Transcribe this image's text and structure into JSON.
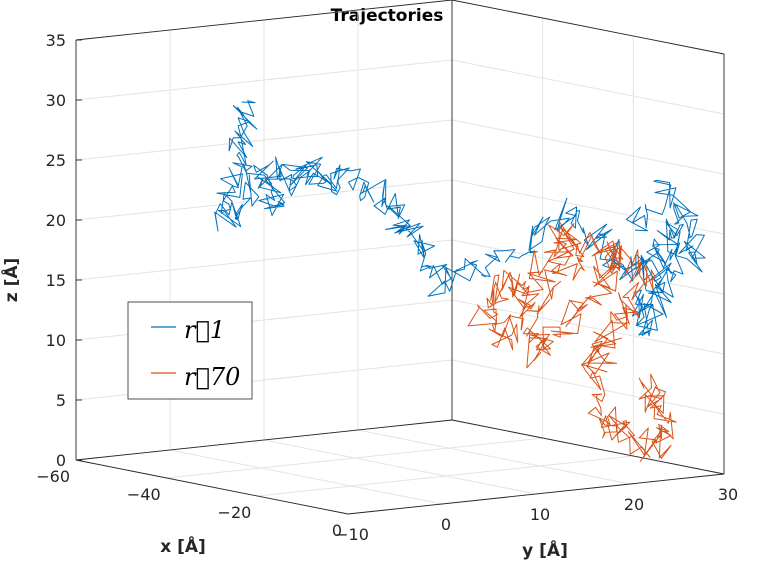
{
  "chart_data": {
    "type": "line",
    "projection": "3d",
    "title": "Trajectories",
    "xlabel": "x [Å]",
    "ylabel": "y [Å]",
    "zlabel": "z [Å]",
    "xlim": [
      -60,
      0
    ],
    "ylim": [
      -10,
      30
    ],
    "zlim": [
      0,
      35
    ],
    "xticks": [
      -60,
      -40,
      -20,
      0
    ],
    "yticks": [
      -10,
      0,
      10,
      20,
      30
    ],
    "zticks": [
      0,
      5,
      10,
      15,
      20,
      25,
      30,
      35
    ],
    "xtick_labels": [
      "−60",
      "−40",
      "−20",
      "0"
    ],
    "ytick_labels": [
      "−10",
      "0",
      "10",
      "20",
      "30"
    ],
    "ztick_labels": [
      "0",
      "5",
      "10",
      "15",
      "20",
      "25",
      "30",
      "35"
    ],
    "grid": true,
    "legend_position": "left",
    "series": [
      {
        "name": "r⃗1",
        "color": "#0072BD",
        "anchors": [
          [
            -52,
            4,
            29
          ],
          [
            -50,
            3,
            27
          ],
          [
            -49,
            2,
            25
          ],
          [
            -47,
            0,
            22
          ],
          [
            -45,
            -1,
            20
          ],
          [
            -42,
            0,
            23
          ],
          [
            -40,
            1,
            25
          ],
          [
            -38,
            0,
            22
          ],
          [
            -35,
            1,
            24
          ],
          [
            -33,
            2,
            26
          ],
          [
            -30,
            2,
            24
          ],
          [
            -28,
            3,
            25
          ],
          [
            -25,
            5,
            24
          ],
          [
            -23,
            6,
            22
          ],
          [
            -22,
            7,
            20
          ],
          [
            -20,
            8,
            18
          ],
          [
            -18,
            9,
            16
          ],
          [
            -15,
            12,
            18
          ],
          [
            -12,
            15,
            20
          ],
          [
            -10,
            18,
            22
          ],
          [
            -8,
            20,
            20
          ],
          [
            -6,
            22,
            18
          ],
          [
            -4,
            23,
            17
          ],
          [
            -2,
            24,
            19
          ],
          [
            0,
            25,
            21
          ],
          [
            1,
            23,
            18
          ],
          [
            0,
            21,
            15
          ],
          [
            -1,
            22,
            13
          ],
          [
            0,
            24,
            16
          ],
          [
            2,
            26,
            19
          ],
          [
            3,
            25,
            22
          ],
          [
            1,
            23,
            24
          ],
          [
            -1,
            21,
            21
          ]
        ]
      },
      {
        "name": "r⃗70",
        "color": "#D95319",
        "anchors": [
          [
            -10,
            12,
            17
          ],
          [
            -8,
            13,
            15
          ],
          [
            -9,
            11,
            12
          ],
          [
            -11,
            10,
            14
          ],
          [
            -12,
            12,
            16
          ],
          [
            -10,
            14,
            17
          ],
          [
            -7,
            16,
            19
          ],
          [
            -5,
            15,
            21
          ],
          [
            -3,
            17,
            20
          ],
          [
            -4,
            15,
            18
          ],
          [
            -6,
            13,
            14
          ],
          [
            -5,
            12,
            11
          ],
          [
            -3,
            14,
            13
          ],
          [
            -1,
            16,
            16
          ],
          [
            0,
            18,
            18
          ],
          [
            1,
            17,
            20
          ],
          [
            2,
            19,
            19
          ],
          [
            3,
            20,
            17
          ],
          [
            2,
            18,
            14
          ],
          [
            1,
            17,
            12
          ],
          [
            0,
            16,
            10
          ],
          [
            -1,
            17,
            7
          ],
          [
            0,
            18,
            5
          ],
          [
            1,
            19,
            4
          ],
          [
            3,
            21,
            3
          ],
          [
            4,
            22,
            5
          ],
          [
            3,
            21,
            7
          ],
          [
            2,
            20,
            9
          ]
        ]
      }
    ]
  }
}
